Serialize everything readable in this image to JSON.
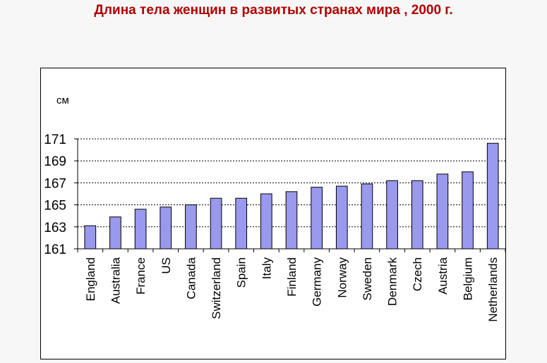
{
  "title": "Длина тела женщин в развитых странах мира , 2000 г.",
  "chart_data": {
    "type": "bar",
    "title": "Длина тела женщин в развитых странах мира , 2000 г.",
    "ylabel": "см",
    "xlabel": "",
    "ylim": [
      161,
      171
    ],
    "yticks": [
      161,
      163,
      165,
      167,
      169,
      171
    ],
    "grid": true,
    "legend": "none",
    "bar_color": "#9999ee",
    "categories": [
      "England",
      "Australia",
      "France",
      "US",
      "Canada",
      "Switzerland",
      "Spain",
      "Italy",
      "Finland",
      "Germany",
      "Norway",
      "Sweden",
      "Denmark",
      "Czech",
      "Austria",
      "Belgium",
      "Netherlands"
    ],
    "values": [
      163.1,
      163.9,
      164.6,
      164.8,
      165.0,
      165.6,
      165.6,
      166.0,
      166.2,
      166.6,
      166.7,
      166.9,
      167.2,
      167.2,
      167.8,
      168.0,
      170.6
    ]
  }
}
